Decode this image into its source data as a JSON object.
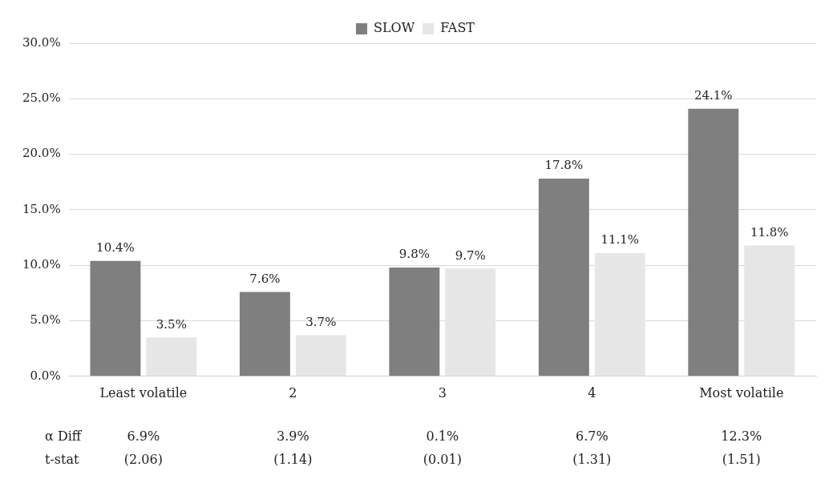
{
  "chart_data": {
    "type": "bar",
    "categories": [
      "Least volatile",
      "2",
      "3",
      "4",
      "Most volatile"
    ],
    "series": [
      {
        "name": "SLOW",
        "color": "#7f7f7f",
        "values": [
          10.4,
          7.6,
          9.8,
          17.8,
          24.1
        ],
        "value_labels": [
          "10.4%",
          "7.6%",
          "9.8%",
          "17.8%",
          "24.1%"
        ]
      },
      {
        "name": "FAST",
        "color": "#e6e6e6",
        "values": [
          3.5,
          3.7,
          9.7,
          11.1,
          11.8
        ],
        "value_labels": [
          "3.5%",
          "3.7%",
          "9.7%",
          "11.1%",
          "11.8%"
        ]
      }
    ],
    "ylim": [
      0,
      30
    ],
    "yticks": [
      {
        "value": 0,
        "label": "0.0%"
      },
      {
        "value": 5,
        "label": "5.0%"
      },
      {
        "value": 10,
        "label": "10.0%"
      },
      {
        "value": 15,
        "label": "15.0%"
      },
      {
        "value": 20,
        "label": "20.0%"
      },
      {
        "value": 25,
        "label": "25.0%"
      },
      {
        "value": 30,
        "label": "30.0%"
      }
    ],
    "grid": "y",
    "legend": "top",
    "annotations": [
      "α Diff",
      "6.9%",
      "3.9%",
      "0.1%",
      "6.7%",
      "12.3%",
      "t-stat",
      "(2.06)",
      "(1.14)",
      "(0.01)",
      "(1.31)",
      "(1.51)"
    ]
  }
}
